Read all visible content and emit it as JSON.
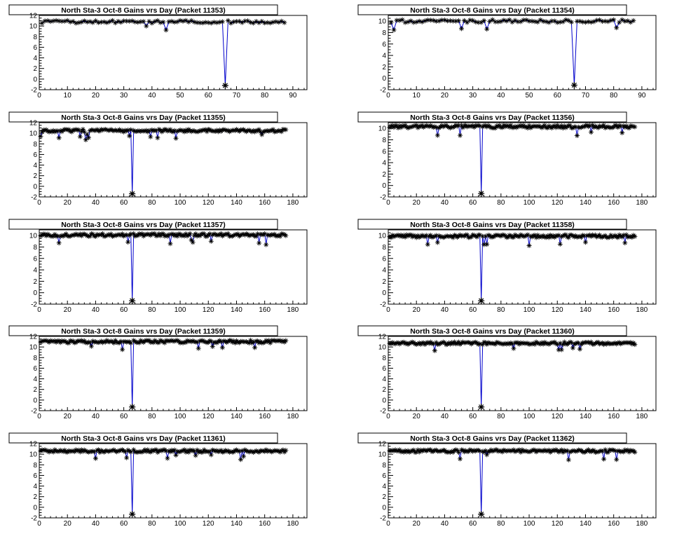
{
  "colors": {
    "line": "#0000cc",
    "marker": "#000000",
    "frame": "#000000",
    "background": "#ffffff"
  },
  "chart_data": [
    {
      "type": "line",
      "title": "North Sta-3 Oct-8 Gains vrs Day (Packet 11353)",
      "xlim": [
        0,
        95
      ],
      "ylim": [
        -2,
        12
      ],
      "xticks": [
        0,
        10,
        20,
        30,
        40,
        50,
        60,
        70,
        80,
        90
      ],
      "yticks": [
        -2,
        0,
        2,
        4,
        6,
        8,
        10,
        12
      ],
      "series": [
        {
          "level": 10.8,
          "dip_x": 66,
          "dip_y": -1.2,
          "x_end": 87
        }
      ]
    },
    {
      "type": "line",
      "title": "North Sta-3 Oct-8 Gains vrs Day (Packet 11354)",
      "xlim": [
        0,
        95
      ],
      "ylim": [
        -2,
        11
      ],
      "xticks": [
        0,
        10,
        20,
        30,
        40,
        50,
        60,
        70,
        80,
        90
      ],
      "yticks": [
        -2,
        0,
        2,
        4,
        6,
        8,
        10
      ],
      "series": [
        {
          "level": 10.0,
          "dip_x": 66,
          "dip_y": -1.2,
          "x_end": 87
        }
      ]
    },
    {
      "type": "line",
      "title": "North Sta-3 Oct-8 Gains vrs Day (Packet 11355)",
      "xlim": [
        0,
        190
      ],
      "ylim": [
        -2,
        12
      ],
      "xticks": [
        0,
        20,
        40,
        60,
        80,
        100,
        120,
        140,
        160,
        180
      ],
      "yticks": [
        -2,
        0,
        2,
        4,
        6,
        8,
        10,
        12
      ],
      "series": [
        {
          "level": 10.5,
          "dip_x": 66,
          "dip_y": -1.4,
          "x_end": 175
        }
      ]
    },
    {
      "type": "line",
      "title": "North Sta-3 Oct-8 Gains vrs Day (Packet 11356)",
      "xlim": [
        0,
        190
      ],
      "ylim": [
        -2,
        11
      ],
      "xticks": [
        0,
        20,
        40,
        60,
        80,
        100,
        120,
        140,
        160,
        180
      ],
      "yticks": [
        -2,
        0,
        2,
        4,
        6,
        8,
        10
      ],
      "series": [
        {
          "level": 10.3,
          "dip_x": 66,
          "dip_y": -1.4,
          "x_end": 175
        }
      ]
    },
    {
      "type": "line",
      "title": "North Sta-3 Oct-8 Gains vrs Day (Packet 11357)",
      "xlim": [
        0,
        190
      ],
      "ylim": [
        -2,
        11
      ],
      "xticks": [
        0,
        20,
        40,
        60,
        80,
        100,
        120,
        140,
        160,
        180
      ],
      "yticks": [
        -2,
        0,
        2,
        4,
        6,
        8,
        10
      ],
      "series": [
        {
          "level": 10.1,
          "dip_x": 66,
          "dip_y": -1.4,
          "x_end": 175
        }
      ]
    },
    {
      "type": "line",
      "title": "North Sta-3 Oct-8 Gains vrs Day (Packet 11358)",
      "xlim": [
        0,
        190
      ],
      "ylim": [
        -2,
        11
      ],
      "xticks": [
        0,
        20,
        40,
        60,
        80,
        100,
        120,
        140,
        160,
        180
      ],
      "yticks": [
        -2,
        0,
        2,
        4,
        6,
        8,
        10
      ],
      "series": [
        {
          "level": 9.9,
          "dip_x": 66,
          "dip_y": -1.4,
          "x_end": 175
        }
      ]
    },
    {
      "type": "line",
      "title": "North Sta-3 Oct-8 Gains vrs Day (Packet 11359)",
      "xlim": [
        0,
        190
      ],
      "ylim": [
        -2,
        12
      ],
      "xticks": [
        0,
        20,
        40,
        60,
        80,
        100,
        120,
        140,
        160,
        180
      ],
      "yticks": [
        -2,
        0,
        2,
        4,
        6,
        8,
        10,
        12
      ],
      "series": [
        {
          "level": 11.0,
          "dip_x": 66,
          "dip_y": -1.3,
          "x_end": 175
        }
      ]
    },
    {
      "type": "line",
      "title": "North Sta-3 Oct-8 Gains vrs Day (Packet 11360)",
      "xlim": [
        0,
        190
      ],
      "ylim": [
        -2,
        12
      ],
      "xticks": [
        0,
        20,
        40,
        60,
        80,
        100,
        120,
        140,
        160,
        180
      ],
      "yticks": [
        -2,
        0,
        2,
        4,
        6,
        8,
        10,
        12
      ],
      "series": [
        {
          "level": 10.7,
          "dip_x": 66,
          "dip_y": -1.3,
          "x_end": 175
        }
      ]
    },
    {
      "type": "line",
      "title": "North Sta-3 Oct-8 Gains vrs Day (Packet 11361)",
      "xlim": [
        0,
        190
      ],
      "ylim": [
        -2,
        12
      ],
      "xticks": [
        0,
        20,
        40,
        60,
        80,
        100,
        120,
        140,
        160,
        180
      ],
      "yticks": [
        -2,
        0,
        2,
        4,
        6,
        8,
        10,
        12
      ],
      "series": [
        {
          "level": 10.6,
          "dip_x": 66,
          "dip_y": -1.3,
          "x_end": 175
        }
      ]
    },
    {
      "type": "line",
      "title": "North Sta-3 Oct-8 Gains vrs Day (Packet 11362)",
      "xlim": [
        0,
        190
      ],
      "ylim": [
        -2,
        12
      ],
      "xticks": [
        0,
        20,
        40,
        60,
        80,
        100,
        120,
        140,
        160,
        180
      ],
      "yticks": [
        -2,
        0,
        2,
        4,
        6,
        8,
        10,
        12
      ],
      "series": [
        {
          "level": 10.6,
          "dip_x": 66,
          "dip_y": -1.3,
          "x_end": 175
        }
      ]
    }
  ]
}
